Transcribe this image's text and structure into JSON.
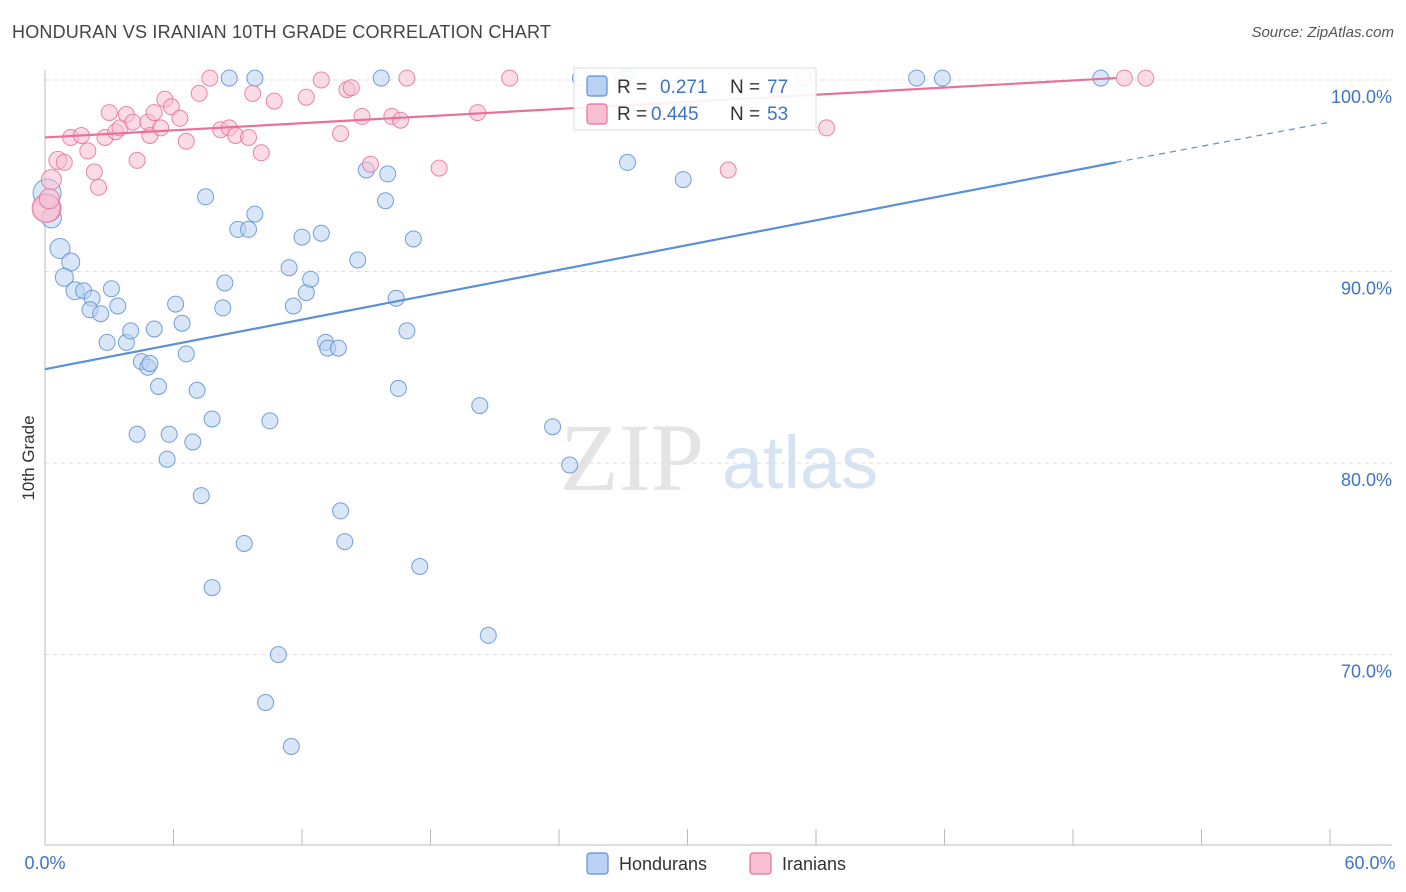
{
  "title": "HONDURAN VS IRANIAN 10TH GRADE CORRELATION CHART",
  "source": "Source: ZipAtlas.com",
  "watermark": {
    "zip": "ZIP",
    "atlas": "atlas"
  },
  "legend_box": [
    {
      "r_label": "R =",
      "r_value": "0.271",
      "n_label": "N =",
      "n_value": "77",
      "color": "#5b8fd6"
    },
    {
      "r_label": "R =",
      "r_value": "0.445",
      "n_label": "N =",
      "n_value": "53",
      "color": "#e87099"
    }
  ],
  "bottom_legend": [
    "Hondurans",
    "Iranians"
  ],
  "chart_data": {
    "type": "scatter",
    "title": "HONDURAN VS IRANIAN 10TH GRADE CORRELATION CHART",
    "xlabel": "",
    "ylabel": "10th Grade",
    "xlim": [
      0,
      60
    ],
    "ylim": [
      60,
      101.5
    ],
    "x_tick_labels": [
      "0.0%",
      "60.0%"
    ],
    "y_ticks": [
      70,
      80,
      90,
      100
    ],
    "y_tick_labels": [
      "70.0%",
      "80.0%",
      "90.0%",
      "100.0%"
    ],
    "grid": true,
    "legend_position": "top-center",
    "series": [
      {
        "name": "Hondurans",
        "color": "#5b8fd6",
        "fill": "#b9d1f2",
        "r": 0.271,
        "n": 77,
        "trend": {
          "x0": 0,
          "y0": 84.9,
          "x1": 50,
          "y1": 95.7,
          "dash_to_x": 60,
          "dash_to_y": 97.8
        },
        "points": [
          [
            0.1,
            94.1,
            14
          ],
          [
            0.3,
            92.8,
            10
          ],
          [
            0.7,
            91.2,
            10
          ],
          [
            1.2,
            90.5,
            9
          ],
          [
            0.9,
            89.7,
            9
          ],
          [
            1.4,
            89.0,
            9
          ],
          [
            1.8,
            89.0,
            8
          ],
          [
            2.2,
            88.6,
            8
          ],
          [
            2.1,
            88.0,
            8
          ],
          [
            2.6,
            87.8,
            8
          ],
          [
            3.1,
            89.1,
            8
          ],
          [
            3.4,
            88.2,
            8
          ],
          [
            2.9,
            86.3,
            8
          ],
          [
            3.8,
            86.3,
            8
          ],
          [
            4.0,
            86.9,
            8
          ],
          [
            5.1,
            87.0,
            8
          ],
          [
            4.5,
            85.3,
            8
          ],
          [
            4.8,
            85.0,
            8
          ],
          [
            4.9,
            85.2,
            8
          ],
          [
            5.3,
            84.0,
            8
          ],
          [
            6.1,
            88.3,
            8
          ],
          [
            6.4,
            87.3,
            8
          ],
          [
            6.6,
            85.7,
            8
          ],
          [
            7.1,
            83.8,
            8
          ],
          [
            7.5,
            93.9,
            8
          ],
          [
            8.4,
            89.4,
            8
          ],
          [
            8.3,
            88.1,
            8
          ],
          [
            7.8,
            82.3,
            8
          ],
          [
            4.3,
            81.5,
            8
          ],
          [
            5.8,
            81.5,
            8
          ],
          [
            6.9,
            81.1,
            8
          ],
          [
            5.7,
            80.2,
            8
          ],
          [
            7.3,
            78.3,
            8
          ],
          [
            9.0,
            92.2,
            8
          ],
          [
            9.5,
            92.2,
            8
          ],
          [
            9.8,
            93.0,
            8
          ],
          [
            8.6,
            100.1,
            8
          ],
          [
            9.8,
            100.1,
            8
          ],
          [
            11.4,
            90.2,
            8
          ],
          [
            11.6,
            88.2,
            8
          ],
          [
            12.2,
            88.9,
            8
          ],
          [
            12.4,
            89.6,
            8
          ],
          [
            12.0,
            91.8,
            8
          ],
          [
            12.9,
            92.0,
            8
          ],
          [
            13.1,
            86.3,
            8
          ],
          [
            13.2,
            86.0,
            8
          ],
          [
            13.7,
            86.0,
            8
          ],
          [
            10.5,
            82.2,
            8
          ],
          [
            9.3,
            75.8,
            8
          ],
          [
            7.8,
            73.5,
            8
          ],
          [
            10.9,
            70.0,
            8
          ],
          [
            10.3,
            67.5,
            8
          ],
          [
            11.5,
            65.2,
            8
          ],
          [
            13.8,
            77.5,
            8
          ],
          [
            14.0,
            75.9,
            8
          ],
          [
            14.6,
            90.6,
            8
          ],
          [
            15.0,
            95.3,
            8
          ],
          [
            16.0,
            95.1,
            8
          ],
          [
            15.9,
            93.7,
            8
          ],
          [
            16.4,
            88.6,
            8
          ],
          [
            17.2,
            91.7,
            8
          ],
          [
            16.9,
            86.9,
            8
          ],
          [
            16.5,
            83.9,
            8
          ],
          [
            17.5,
            74.6,
            8
          ],
          [
            15.7,
            100.1,
            8
          ],
          [
            20.3,
            83.0,
            8
          ],
          [
            20.7,
            71.0,
            8
          ],
          [
            23.7,
            81.9,
            8
          ],
          [
            24.5,
            79.9,
            8
          ],
          [
            25.0,
            100.1,
            8
          ],
          [
            27.0,
            100.1,
            8
          ],
          [
            27.2,
            100.1,
            8
          ],
          [
            27.2,
            95.7,
            8
          ],
          [
            29.8,
            94.8,
            8
          ],
          [
            40.7,
            100.1,
            8
          ],
          [
            41.9,
            100.1,
            8
          ],
          [
            49.3,
            100.1,
            8
          ]
        ]
      },
      {
        "name": "Iranians",
        "color": "#e87099",
        "fill": "#f7bfd2",
        "r": 0.445,
        "n": 53,
        "trend": {
          "x0": 0,
          "y0": 97.0,
          "x1": 50,
          "y1": 100.1
        },
        "points": [
          [
            0.1,
            93.3,
            14
          ],
          [
            0.3,
            94.8,
            10
          ],
          [
            0.6,
            95.8,
            9
          ],
          [
            0.9,
            95.7,
            8
          ],
          [
            1.2,
            97.0,
            8
          ],
          [
            1.7,
            97.1,
            8
          ],
          [
            2.0,
            96.3,
            8
          ],
          [
            2.3,
            95.2,
            8
          ],
          [
            2.5,
            94.4,
            8
          ],
          [
            2.8,
            97.0,
            8
          ],
          [
            3.0,
            98.3,
            8
          ],
          [
            3.3,
            97.3,
            8
          ],
          [
            3.5,
            97.5,
            8
          ],
          [
            3.8,
            98.2,
            8
          ],
          [
            4.1,
            97.8,
            8
          ],
          [
            4.3,
            95.8,
            8
          ],
          [
            4.8,
            97.8,
            8
          ],
          [
            4.9,
            97.1,
            8
          ],
          [
            5.1,
            98.3,
            8
          ],
          [
            5.4,
            97.5,
            8
          ],
          [
            5.6,
            99.0,
            8
          ],
          [
            5.9,
            98.6,
            8
          ],
          [
            6.3,
            98.0,
            8
          ],
          [
            6.6,
            96.8,
            8
          ],
          [
            7.2,
            99.3,
            8
          ],
          [
            7.7,
            100.1,
            8
          ],
          [
            8.2,
            97.4,
            8
          ],
          [
            8.6,
            97.5,
            8
          ],
          [
            8.9,
            97.1,
            8
          ],
          [
            9.5,
            97.0,
            8
          ],
          [
            9.7,
            99.3,
            8
          ],
          [
            10.1,
            96.2,
            8
          ],
          [
            10.7,
            98.9,
            8
          ],
          [
            12.2,
            99.1,
            8
          ],
          [
            12.9,
            100.0,
            8
          ],
          [
            13.8,
            97.2,
            8
          ],
          [
            14.1,
            99.5,
            8
          ],
          [
            14.3,
            99.6,
            8
          ],
          [
            14.8,
            98.1,
            8
          ],
          [
            15.2,
            95.6,
            8
          ],
          [
            16.2,
            98.1,
            8
          ],
          [
            16.6,
            97.9,
            8
          ],
          [
            16.9,
            100.1,
            8
          ],
          [
            18.4,
            95.4,
            8
          ],
          [
            20.2,
            98.3,
            8
          ],
          [
            21.7,
            100.1,
            8
          ],
          [
            31.9,
            95.3,
            8
          ],
          [
            35.4,
            100.1,
            8
          ],
          [
            36.5,
            97.5,
            8
          ],
          [
            50.4,
            100.1,
            8
          ],
          [
            51.4,
            100.1,
            8
          ],
          [
            0.05,
            93.3,
            14
          ],
          [
            0.2,
            93.8,
            10
          ]
        ]
      }
    ]
  }
}
